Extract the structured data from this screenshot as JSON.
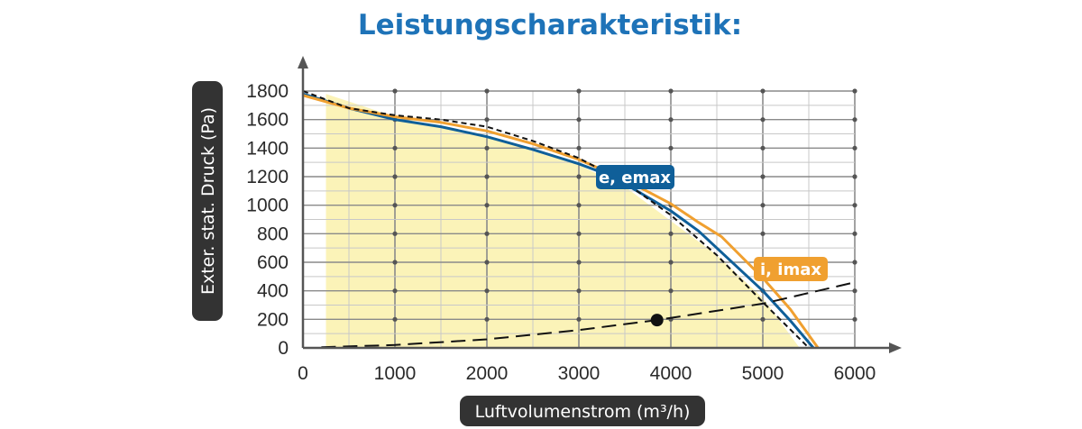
{
  "chart_data": {
    "type": "area",
    "title": "Leistungscharakteristik:",
    "xlabel": "Luftvolumenstrom (m³/h)",
    "ylabel": "Exter. stat. Druck (Pa)",
    "xlim": [
      0,
      6000
    ],
    "ylim": [
      0,
      1800
    ],
    "x_ticks": [
      "0",
      "1000",
      "2000",
      "3000",
      "4000",
      "5000",
      "6000"
    ],
    "y_ticks": [
      "0",
      "200",
      "400",
      "600",
      "800",
      "1000",
      "1200",
      "1400",
      "1600",
      "1800"
    ],
    "grid": true,
    "shaded_region": {
      "x": [
        250,
        250,
        1000,
        2000,
        3000,
        3500,
        4000,
        4500,
        5000,
        5400
      ],
      "y": [
        0,
        1780,
        1620,
        1480,
        1280,
        1130,
        890,
        650,
        350,
        0
      ]
    },
    "series": [
      {
        "name": "e, emax",
        "color": "#0f5f99",
        "x": [
          0,
          500,
          1000,
          1500,
          2000,
          2500,
          3000,
          3250,
          3500,
          4000,
          4300,
          4700,
          5000,
          5300,
          5550
        ],
        "y": [
          1780,
          1680,
          1600,
          1550,
          1480,
          1390,
          1290,
          1230,
          1150,
          960,
          820,
          580,
          400,
          190,
          0
        ]
      },
      {
        "name": "i, imax",
        "color": "#f0a030",
        "x": [
          0,
          500,
          1000,
          1500,
          2000,
          2500,
          3000,
          3500,
          4000,
          4300,
          4550,
          5000,
          5300,
          5600
        ],
        "y": [
          1770,
          1680,
          1620,
          1580,
          1520,
          1430,
          1320,
          1180,
          1010,
          880,
          780,
          490,
          270,
          0
        ]
      },
      {
        "color": "#111111",
        "style": "dashed",
        "x": [
          0,
          500,
          1000,
          1500,
          2000,
          2500,
          3000,
          3500,
          4000,
          4500,
          5000,
          5500
        ],
        "y": [
          1800,
          1680,
          1630,
          1600,
          1550,
          1450,
          1330,
          1160,
          930,
          650,
          320,
          0
        ]
      },
      {
        "color": "#111111",
        "style": "long-dashed",
        "x": [
          200,
          1000,
          2000,
          3000,
          3850,
          5000,
          6000
        ],
        "y": [
          5,
          20,
          60,
          125,
          195,
          310,
          460
        ]
      }
    ],
    "operating_point": {
      "x": 3850,
      "y": 195
    }
  }
}
